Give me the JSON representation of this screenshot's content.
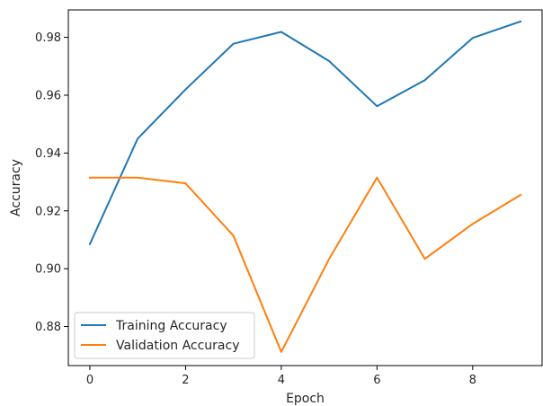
{
  "chart_data": {
    "type": "line",
    "title": "",
    "xlabel": "Epoch",
    "ylabel": "Accuracy",
    "xlim": [
      -0.45,
      9.45
    ],
    "ylim": [
      0.8665,
      0.9895
    ],
    "xticks": [
      0,
      2,
      4,
      6,
      8
    ],
    "yticks": [
      0.88,
      0.9,
      0.92,
      0.94,
      0.96,
      0.98
    ],
    "ytick_labels": [
      "0.88",
      "0.90",
      "0.92",
      "0.94",
      "0.96",
      "0.98"
    ],
    "grid": false,
    "legend_position": "lower-left",
    "x": [
      0,
      1,
      2,
      3,
      4,
      5,
      6,
      7,
      8,
      9
    ],
    "series": [
      {
        "name": "Training Accuracy",
        "color": "#1f77b4",
        "values": [
          0.9085,
          0.945,
          0.962,
          0.9778,
          0.9819,
          0.9718,
          0.9562,
          0.9652,
          0.9798,
          0.9855
        ]
      },
      {
        "name": "Validation Accuracy",
        "color": "#ff7f0e",
        "values": [
          0.9315,
          0.9315,
          0.9295,
          0.9114,
          0.8712,
          0.9034,
          0.9315,
          0.9034,
          0.9155,
          0.9255
        ]
      }
    ]
  }
}
